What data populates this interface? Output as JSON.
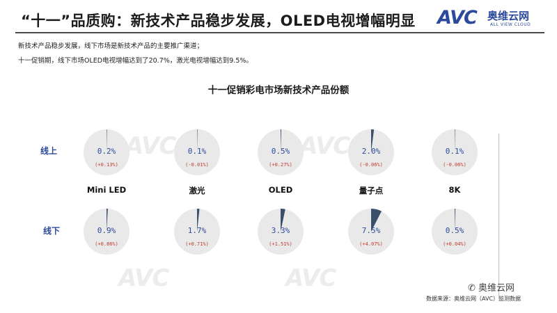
{
  "header": {
    "title": "“十一”品质购：新技术产品稳步发展，OLED电视增幅明显",
    "logo_text": "AVC",
    "logo_cn": "奥维云网",
    "logo_en": "ALL VIEW CLOUD"
  },
  "notes": [
    "新技术产品稳步发展，线下市场是新技术产品的主要推广渠道；",
    "十一促销期，线下市场OLED电视增幅达到了20.7%，激光电视增幅达到9.5%。"
  ],
  "chart_data": {
    "type": "pie",
    "title": "十一促销彩电市场新技术产品份额",
    "categories": [
      "Mini LED",
      "激光",
      "OLED",
      "量子点",
      "8K"
    ],
    "rows": [
      {
        "name": "线上",
        "values": [
          0.2,
          0.1,
          0.5,
          2.0,
          0.1
        ],
        "labels": [
          "0.2%",
          "0.1%",
          "0.5%",
          "2.0%",
          "0.1%"
        ],
        "changes": [
          "(+0.13%)",
          "(-0.01%)",
          "(+0.27%)",
          "(-0.06%)",
          "(-0.06%)"
        ]
      },
      {
        "name": "线下",
        "values": [
          0.9,
          1.7,
          3.3,
          7.5,
          0.5
        ],
        "labels": [
          "0.9%",
          "1.7%",
          "3.3%",
          "7.5%",
          "0.5%"
        ],
        "changes": [
          "(+0.86%)",
          "(+0.71%)",
          "(+1.51%)",
          "(+4.07%)",
          "(+0.04%)"
        ]
      }
    ],
    "colors": {
      "slice": "#3b4f6b",
      "rest": "#e9e9e9",
      "value_text": "#2b4a9c",
      "change_text": "#c0392b"
    }
  },
  "footer": {
    "wechat": "奥维云网",
    "source": "数据来源：奥维云网（AVC）监测数据"
  }
}
